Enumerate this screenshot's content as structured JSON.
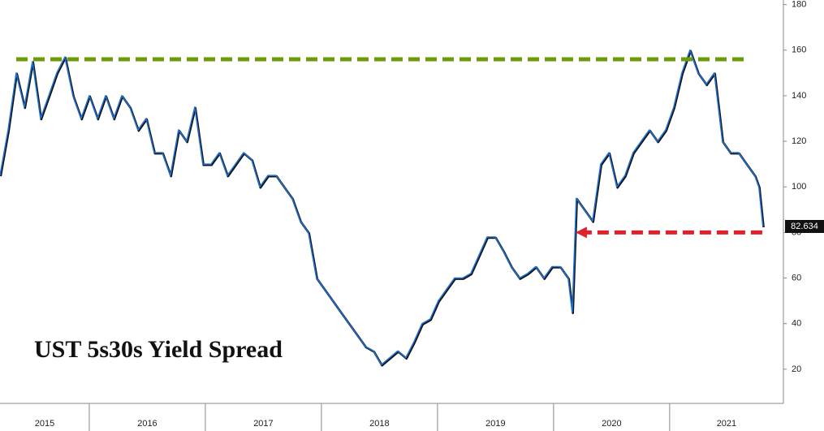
{
  "chart_data": {
    "type": "line",
    "title": "UST 5s30s Yield Spread",
    "x": [
      2015.231,
      2015.301,
      2015.371,
      2015.441,
      2015.511,
      2015.581,
      2015.651,
      2015.72,
      2015.79,
      2015.86,
      2015.93,
      2016.0,
      2016.07,
      2016.14,
      2016.21,
      2016.28,
      2016.35,
      2016.42,
      2016.49,
      2016.56,
      2016.63,
      2016.699,
      2016.769,
      2016.839,
      2016.909,
      2016.979,
      2017.049,
      2017.119,
      2017.189,
      2017.259,
      2017.329,
      2017.399,
      2017.469,
      2017.539,
      2017.609,
      2017.678,
      2017.748,
      2017.818,
      2017.888,
      2017.958,
      2018.028,
      2018.098,
      2018.168,
      2018.238,
      2018.308,
      2018.378,
      2018.448,
      2018.517,
      2018.587,
      2018.657,
      2018.727,
      2018.797,
      2018.867,
      2018.937,
      2019.007,
      2019.077,
      2019.147,
      2019.217,
      2019.287,
      2019.357,
      2019.427,
      2019.497,
      2019.566,
      2019.636,
      2019.706,
      2019.776,
      2019.846,
      2019.916,
      2019.986,
      2020.056,
      2020.126,
      2020.161,
      2020.196,
      2020.266,
      2020.336,
      2020.406,
      2020.476,
      2020.545,
      2020.615,
      2020.685,
      2020.755,
      2020.825,
      2020.895,
      2020.965,
      2021.035,
      2021.105,
      2021.175,
      2021.245,
      2021.315,
      2021.385,
      2021.455,
      2021.524,
      2021.594,
      2021.664,
      2021.734,
      2021.769,
      2021.804
    ],
    "series": [
      {
        "name": "UST 5s30s",
        "color": "#1f6fd1",
        "values": [
          105,
          125,
          150,
          135,
          155,
          130,
          140,
          150,
          157,
          140,
          130,
          140,
          130,
          140,
          130,
          140,
          135,
          125,
          130,
          115,
          115,
          105,
          125,
          120,
          135,
          110,
          110,
          115,
          105,
          110,
          115,
          112,
          100,
          105,
          105,
          100,
          95,
          85,
          80,
          60,
          55,
          50,
          45,
          40,
          35,
          30,
          28,
          22,
          25,
          28,
          25,
          32,
          40,
          42,
          50,
          55,
          60,
          60,
          62,
          70,
          78,
          78,
          72,
          65,
          60,
          62,
          65,
          60,
          65,
          65,
          60,
          45,
          95,
          90,
          85,
          110,
          115,
          100,
          105,
          115,
          120,
          125,
          120,
          125,
          135,
          150,
          160,
          150,
          145,
          150,
          120,
          115,
          115,
          110,
          105,
          100,
          82.634
        ]
      }
    ],
    "reference_lines": [
      {
        "value": 156,
        "color": "#6b9a0a",
        "x": [
          2015.371,
          2021.664
        ]
      },
      {
        "value": 80,
        "color": "#e0202a",
        "x": [
          2020.231,
          2021.804
        ]
      }
    ],
    "xlim": [
      2015.231,
      2021.98
    ],
    "xticks": [
      2015,
      2016,
      2017,
      2018,
      2019,
      2020,
      2021
    ],
    "ylim": [
      5,
      182
    ],
    "yticks": [
      20,
      40,
      60,
      80,
      100,
      120,
      140,
      160,
      180
    ]
  }
}
